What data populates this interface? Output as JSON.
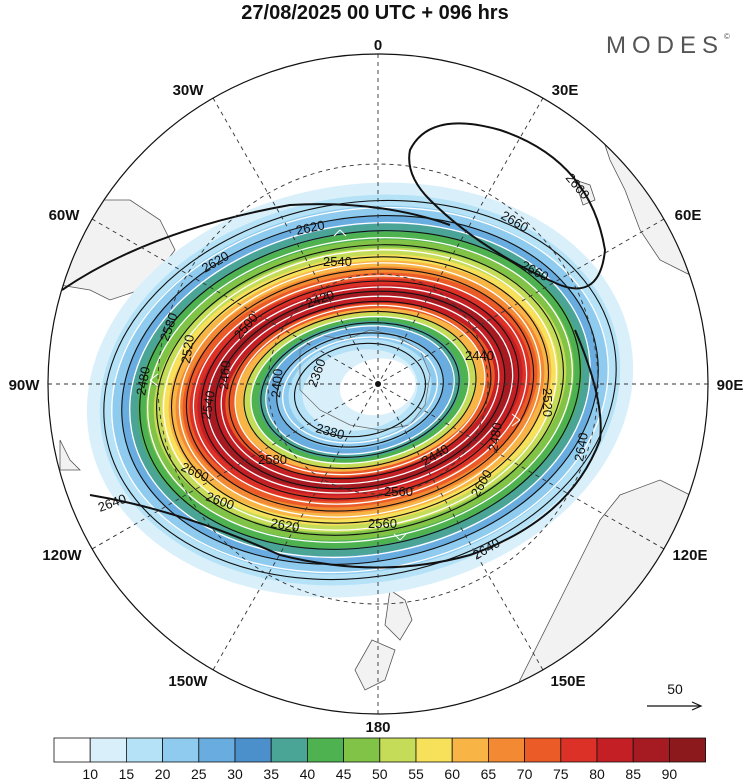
{
  "header": {
    "title": "27/08/2025  00 UTC  + 096 hrs",
    "brand": "MODES",
    "brand_mark": "©"
  },
  "map": {
    "projection": "polar-stereographic-south",
    "longitude_labels": [
      "0",
      "30E",
      "60E",
      "90E",
      "120E",
      "150E",
      "180",
      "150W",
      "120W",
      "90W",
      "60W",
      "30W"
    ],
    "contour_labels": [
      "2660",
      "2660",
      "2660",
      "2620",
      "2620",
      "2580",
      "2540",
      "2500",
      "2460",
      "2420",
      "2380",
      "2360",
      "2400",
      "2440",
      "2480",
      "2520",
      "2560",
      "2600",
      "2640",
      "2640",
      "2640",
      "2600",
      "2620",
      "2440",
      "2480",
      "2520",
      "2540",
      "2560",
      "2580",
      "2600"
    ],
    "vector_reference": "50"
  },
  "colorbar": {
    "ticks": [
      "10",
      "15",
      "20",
      "25",
      "30",
      "35",
      "40",
      "45",
      "50",
      "55",
      "60",
      "65",
      "70",
      "75",
      "80",
      "85",
      "90"
    ],
    "colors": [
      "#ffffff",
      "#d9f0fb",
      "#b5e2f6",
      "#8fcbee",
      "#69ade0",
      "#4b8fcb",
      "#4aa596",
      "#4db24f",
      "#80c347",
      "#c5dc58",
      "#f7e05a",
      "#f8b445",
      "#f38a33",
      "#ea5b28",
      "#db3127",
      "#c31f24",
      "#a61b22",
      "#8c1a1c"
    ]
  }
}
